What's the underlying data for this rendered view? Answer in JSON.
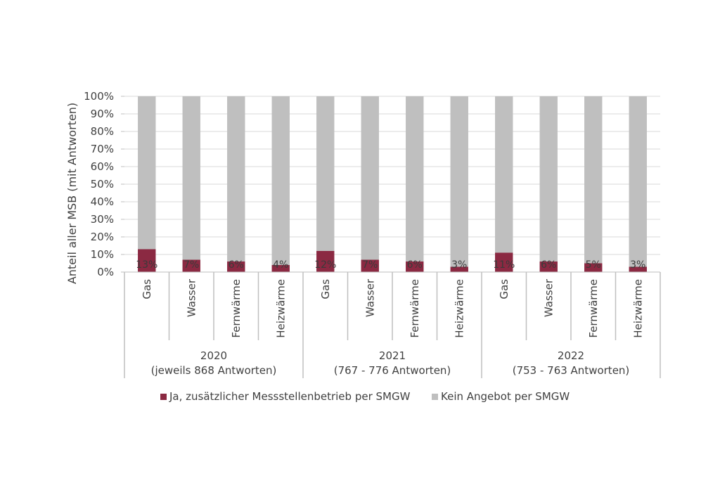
{
  "chart_data": {
    "type": "bar",
    "stacked": true,
    "percent": true,
    "ylabel": "Anteil aller MSB (mit Antworten)",
    "ylim": [
      0,
      100
    ],
    "yticks": [
      "0%",
      "10%",
      "20%",
      "30%",
      "40%",
      "50%",
      "60%",
      "70%",
      "80%",
      "90%",
      "100%"
    ],
    "grid": "horizontal",
    "legend_position": "bottom",
    "groups": [
      {
        "label": "2020",
        "sublabel": "(jeweils 868 Antworten)",
        "categories": [
          "Gas",
          "Wasser",
          "Fernwärme",
          "Heizwärme"
        ]
      },
      {
        "label": "2021",
        "sublabel": "(767 - 776 Antworten)",
        "categories": [
          "Gas",
          "Wasser",
          "Fernwärme",
          "Heizwärme"
        ]
      },
      {
        "label": "2022",
        "sublabel": "(753 - 763 Antworten)",
        "categories": [
          "Gas",
          "Wasser",
          "Fernwärme",
          "Heizwärme"
        ]
      }
    ],
    "series": [
      {
        "name": "Ja, zusätzlicher Messstellenbetrieb per SMGW",
        "color": "#8b2942",
        "values": [
          13,
          7,
          6,
          4,
          12,
          7,
          6,
          3,
          11,
          6,
          5,
          3
        ],
        "labels": [
          "13%",
          "7%",
          "6%",
          "4%",
          "12%",
          "7%",
          "6%",
          "3%",
          "11%",
          "6%",
          "5%",
          "3%"
        ]
      },
      {
        "name": "Kein Angebot per SMGW",
        "color": "#bfbfbf",
        "values": [
          87,
          93,
          94,
          96,
          88,
          93,
          94,
          97,
          89,
          94,
          95,
          97
        ]
      }
    ]
  }
}
